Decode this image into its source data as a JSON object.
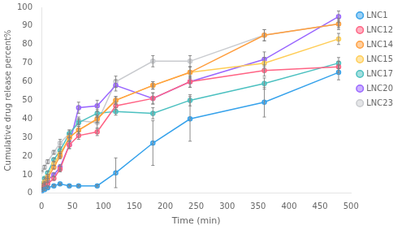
{
  "chart_data": {
    "type": "line",
    "x": [
      0,
      5,
      10,
      20,
      30,
      45,
      60,
      90,
      120,
      180,
      240,
      360,
      480
    ],
    "series": [
      {
        "name": "LNC1",
        "values": [
          1,
          2,
          3,
          4,
          5,
          4,
          4,
          4,
          11,
          27,
          40,
          49,
          65
        ],
        "yerr": [
          0,
          0.5,
          0.5,
          0.5,
          0.5,
          0.5,
          0.5,
          0.5,
          8,
          12,
          12,
          8,
          4
        ],
        "marker": "circle",
        "line_style": "solid"
      },
      {
        "name": "LNC12",
        "values": [
          2,
          4,
          5,
          8,
          13,
          26,
          31,
          33,
          47,
          51,
          60,
          66,
          68
        ],
        "yerr": [
          0,
          0.5,
          1,
          1,
          1.5,
          2,
          2,
          2,
          2,
          3,
          3,
          3,
          3
        ],
        "marker": "circle",
        "line_style": "solid"
      },
      {
        "name": "LNC14",
        "values": [
          3,
          5,
          8,
          14,
          20,
          30,
          34,
          40,
          50,
          58,
          65,
          85,
          91
        ],
        "yerr": [
          0,
          0.5,
          1,
          1,
          1.5,
          2,
          2,
          2,
          2,
          2,
          3,
          3,
          2
        ],
        "marker": "circle",
        "line_style": "solid"
      },
      {
        "name": "LNC15",
        "values": [
          4,
          6,
          9,
          16,
          21,
          30,
          34,
          40,
          50,
          58,
          65,
          70,
          83
        ],
        "yerr": [
          0,
          0.5,
          1,
          1,
          1.5,
          2,
          2,
          2,
          2,
          2,
          3,
          3,
          3
        ],
        "marker": "circle",
        "line_style": "solid"
      },
      {
        "name": "LNC17",
        "values": [
          5,
          8,
          11,
          18,
          23,
          32,
          38,
          43,
          44,
          43,
          50,
          59,
          70
        ],
        "yerr": [
          0,
          0.5,
          1,
          1,
          1.5,
          2,
          2,
          2,
          2,
          3,
          3,
          3,
          3
        ],
        "marker": "circle",
        "line_style": "solid"
      },
      {
        "name": "LNC20",
        "values": [
          3,
          5,
          7,
          10,
          14,
          26,
          46,
          47,
          58,
          51,
          60,
          72,
          95
        ],
        "yerr": [
          0,
          0.5,
          1,
          1,
          1.5,
          2,
          3,
          3,
          3,
          3,
          3,
          4,
          3
        ],
        "marker": "circle",
        "line_style": "solid"
      },
      {
        "name": "LNC23",
        "values": [
          12,
          14,
          17,
          22,
          27,
          32,
          39,
          38,
          60,
          71,
          71,
          85,
          91
        ],
        "yerr": [
          0,
          1,
          1,
          1,
          2,
          2,
          2,
          3,
          3,
          3,
          3,
          3,
          3
        ],
        "marker": "circle",
        "line_style": "solid"
      }
    ],
    "xlabel": "Time (min)",
    "ylabel": "Cumulative drug release percent%",
    "xlim": [
      0,
      500
    ],
    "ylim": [
      0,
      100
    ],
    "xticks": [
      0,
      50,
      100,
      150,
      200,
      250,
      300,
      350,
      400,
      450,
      500
    ],
    "yticks": [
      0,
      10,
      20,
      30,
      40,
      50,
      60,
      70,
      80,
      90,
      100
    ],
    "grid": false,
    "legend": "right"
  }
}
